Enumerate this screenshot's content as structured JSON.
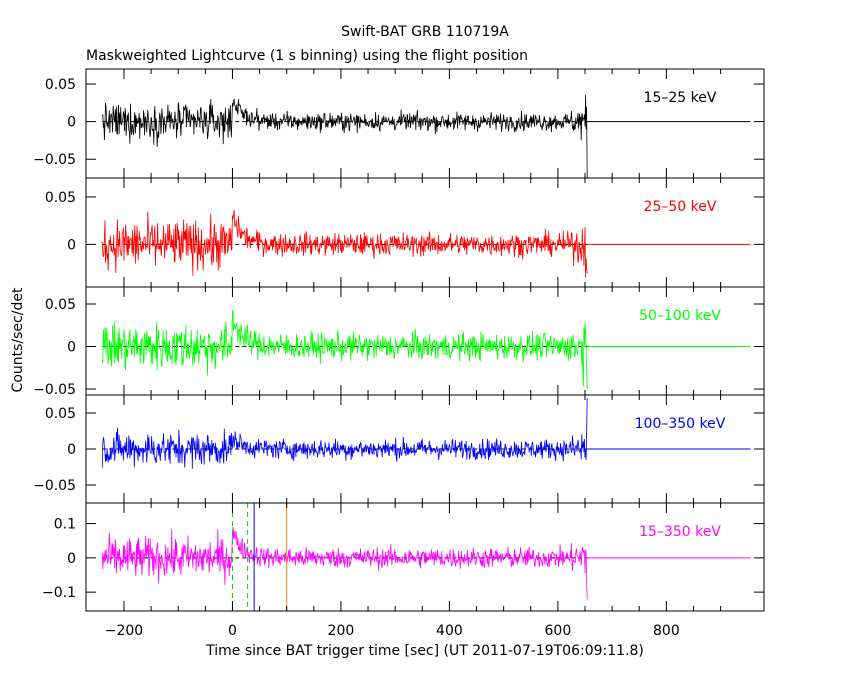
{
  "title": "Swift-BAT GRB 110719A",
  "subtitle": "Maskweighted Lightcurve (1 s binning) using the flight position",
  "chart_data": {
    "type": "line",
    "title": "Swift-BAT GRB 110719A",
    "subtitle": "Maskweighted Lightcurve (1 s binning) using the flight position",
    "xlabel": "Time since BAT trigger time [sec] (UT 2011-07-19T06:09:11.8)",
    "ylabel": "Counts/sec/det",
    "xlim": [
      -270,
      980
    ],
    "x_ticks": [
      -200,
      0,
      200,
      400,
      600,
      800
    ],
    "data_x_range": [
      -240,
      655
    ],
    "panels": [
      {
        "band": "15–25 keV",
        "color": "#000000",
        "ylim": [
          -0.075,
          0.07
        ],
        "y_ticks": [
          0.05,
          0,
          -0.05
        ],
        "y_tick_labels": [
          "0.05",
          "0",
          "−0.05"
        ],
        "noise_before_trigger": 0.012,
        "noise_after_trigger": 0.006,
        "peak_value": 0.055,
        "end_spike_min": -0.075
      },
      {
        "band": "25–50 keV",
        "color": "#ff0000",
        "ylim": [
          -0.045,
          0.07
        ],
        "y_ticks": [
          0.05,
          0
        ],
        "y_tick_labels": [
          "0.05",
          "0"
        ],
        "noise_before_trigger": 0.013,
        "noise_after_trigger": 0.006,
        "peak_value": 0.055,
        "end_spike_min": -0.03
      },
      {
        "band": "50–100 keV",
        "color": "#00ff00",
        "ylim": [
          -0.057,
          0.07
        ],
        "y_ticks": [
          0.05,
          0,
          -0.05
        ],
        "y_tick_labels": [
          "0.05",
          "0",
          "−0.05"
        ],
        "noise_before_trigger": 0.014,
        "noise_after_trigger": 0.008,
        "peak_value": 0.065,
        "end_spike_min": -0.05
      },
      {
        "band": "100–350 keV",
        "color": "#0000ff",
        "ylim": [
          -0.075,
          0.075
        ],
        "y_ticks": [
          0.05,
          0,
          -0.05
        ],
        "y_tick_labels": [
          "0.05",
          "0",
          "−0.05"
        ],
        "noise_before_trigger": 0.012,
        "noise_after_trigger": 0.007,
        "peak_value": 0.03,
        "end_spike_max": 0.07
      },
      {
        "band": "15–350 keV",
        "color": "#ff00ff",
        "ylim": [
          -0.155,
          0.16
        ],
        "y_ticks": [
          0.1,
          0,
          -0.1
        ],
        "y_tick_labels": [
          "0.1",
          "0",
          "−0.1"
        ],
        "noise_before_trigger": 0.03,
        "noise_after_trigger": 0.015,
        "peak_value": 0.14,
        "end_spike_min": -0.12
      }
    ],
    "markers": [
      {
        "x": 0,
        "color": "#00cc00",
        "style": "dashed"
      },
      {
        "x": 28,
        "color": "#00cc00",
        "style": "dashed"
      },
      {
        "x": 40,
        "color": "#0000ff",
        "style": "solid"
      },
      {
        "x": 100,
        "color": "#ff8800",
        "style": "solid"
      }
    ],
    "grid": false
  }
}
